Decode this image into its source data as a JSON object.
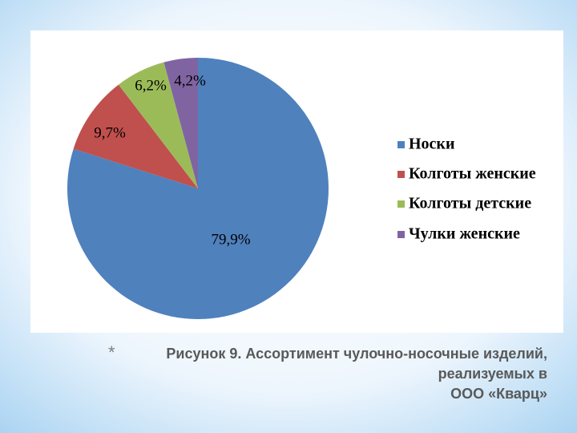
{
  "chart_data": {
    "type": "pie",
    "categories": [
      "Носки",
      "Колготы женские",
      "Колготы детские",
      "Чулки женские"
    ],
    "values": [
      79.9,
      9.7,
      6.2,
      4.2
    ],
    "value_labels": [
      "79,9%",
      "9,7%",
      "6,2%",
      "4,2%"
    ],
    "colors": [
      "#4f81bd",
      "#c0504d",
      "#9bbb59",
      "#8064a2"
    ],
    "legend": "right"
  },
  "slide": {
    "bullet": "*",
    "caption": [
      "Рисунок 9. Ассортимент чулочно-носочные изделий,",
      "реализуемых в",
      "ООО «Кварц»"
    ]
  }
}
